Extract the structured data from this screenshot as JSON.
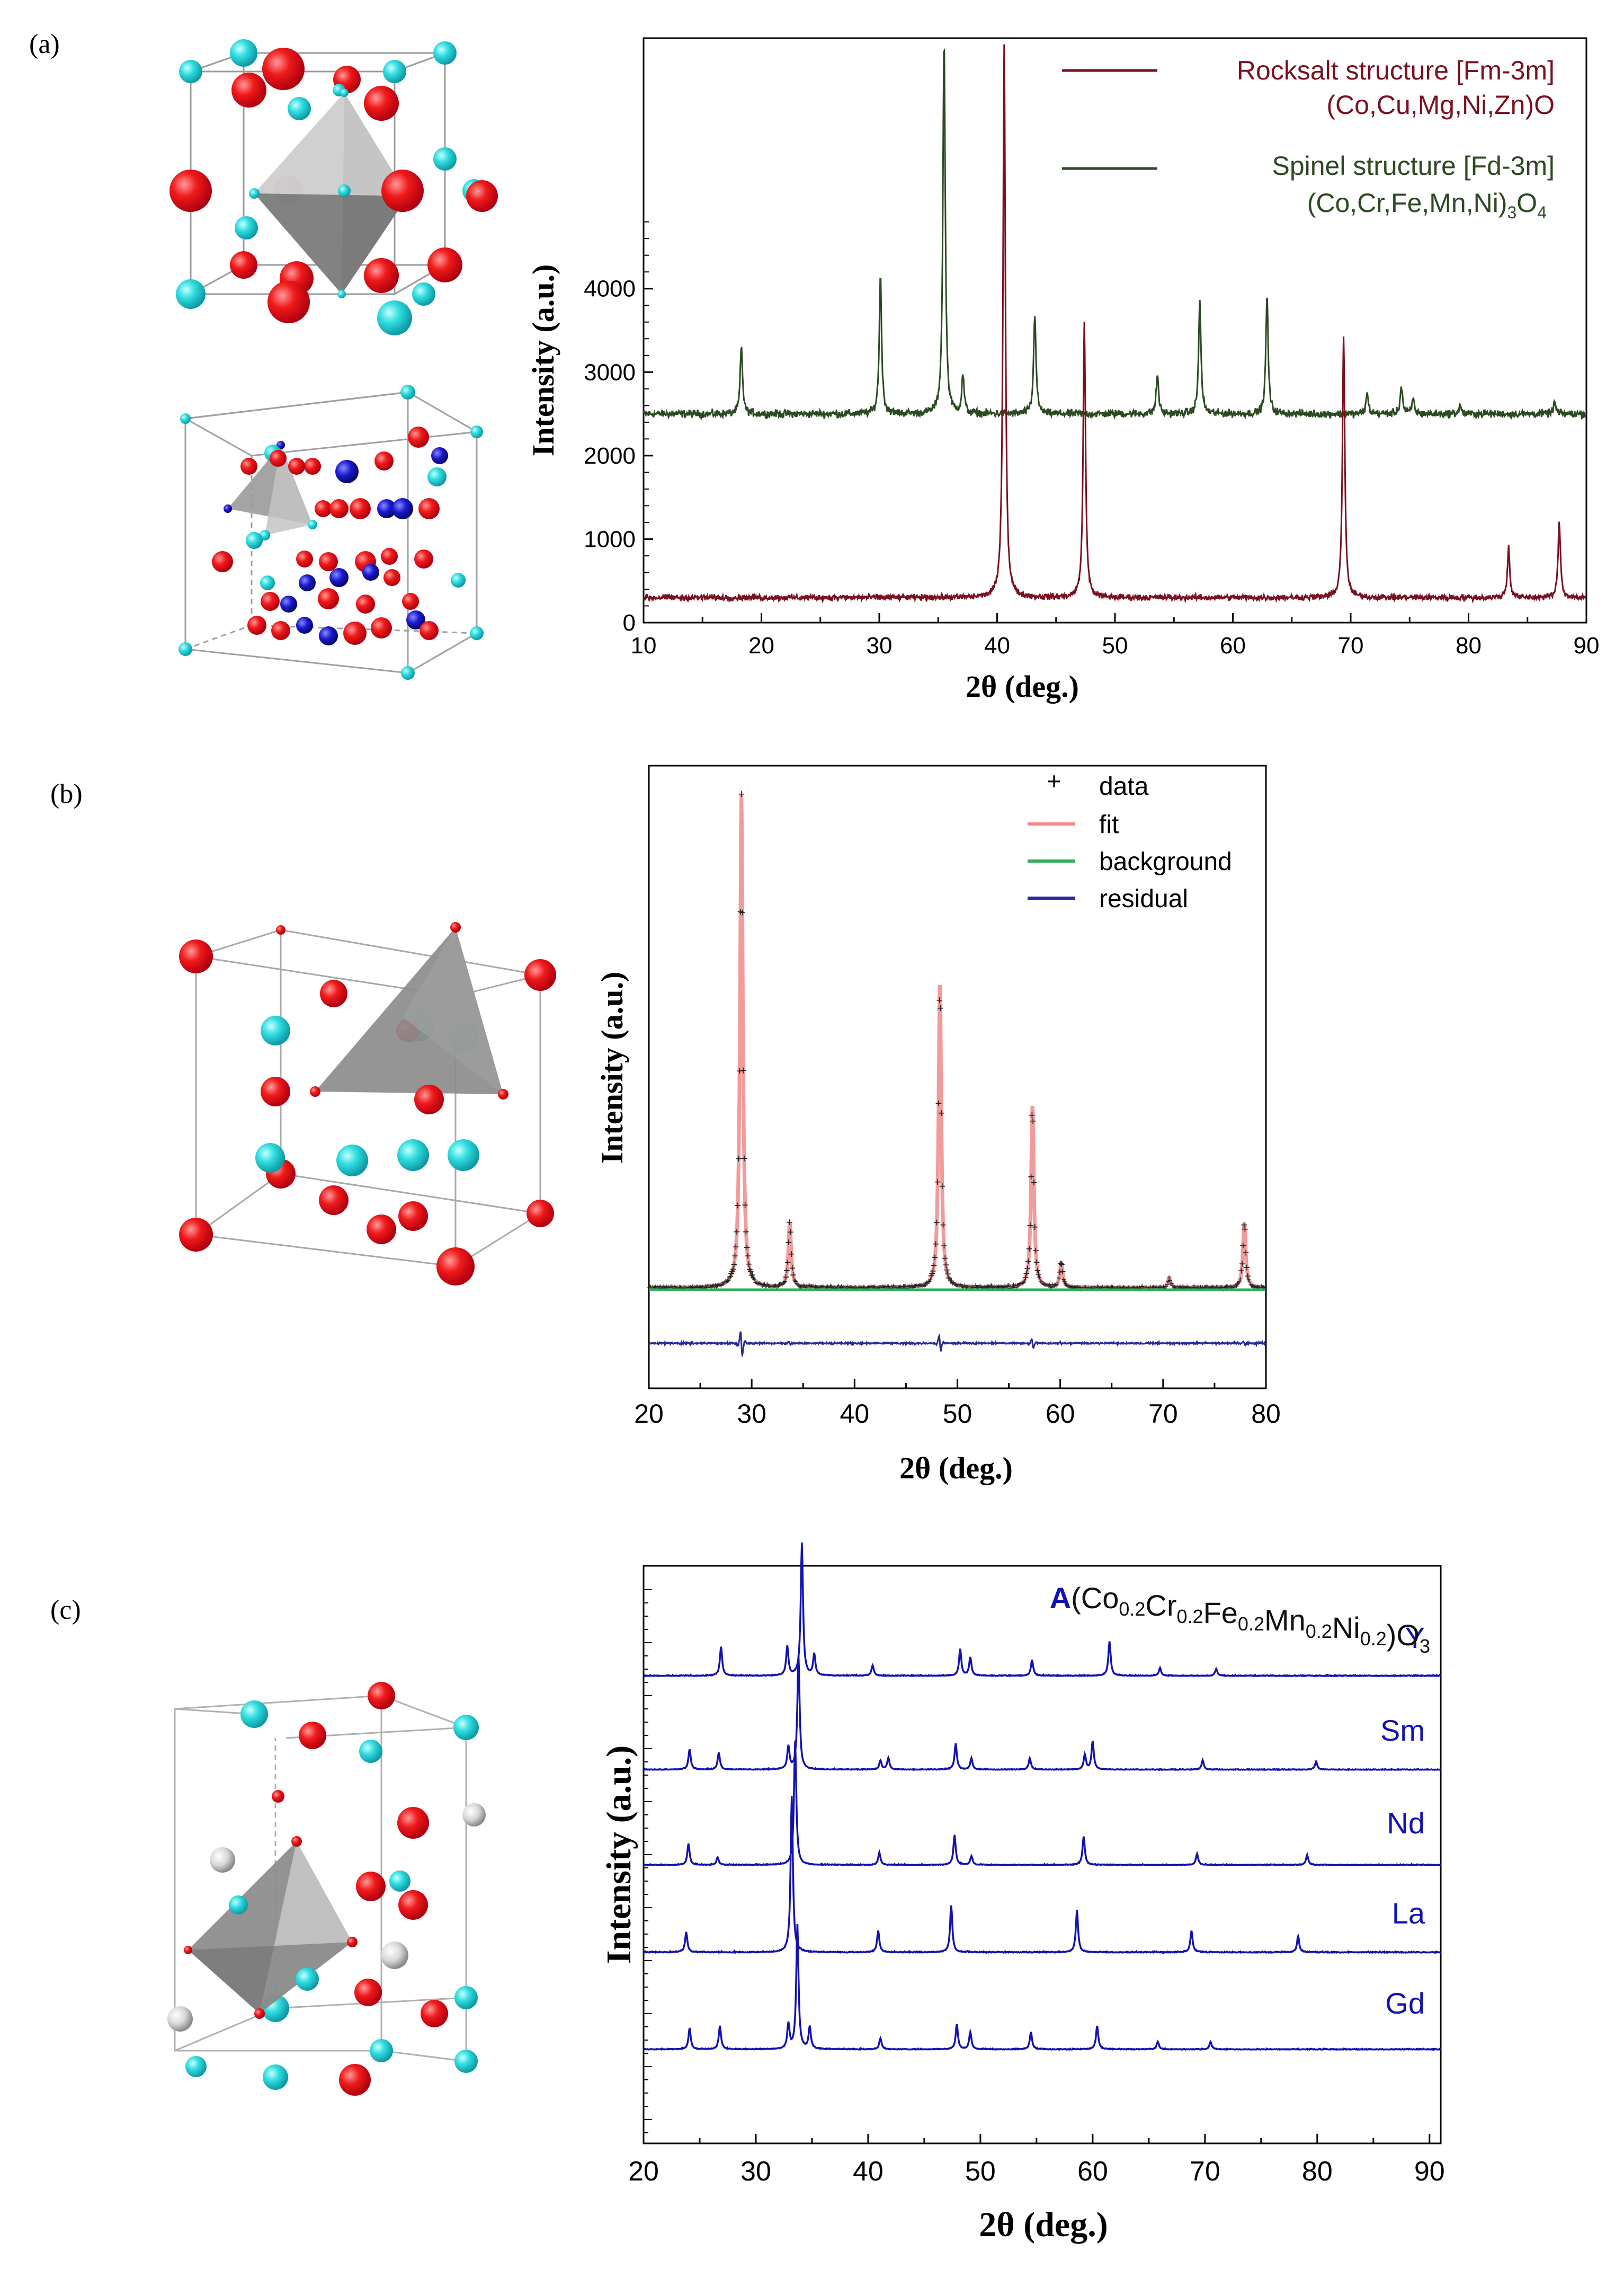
{
  "panels": [
    {
      "label": "(a)"
    },
    {
      "label": "(b)"
    },
    {
      "label": "(c)"
    }
  ],
  "colors": {
    "oxygen_atom": "#e8121a",
    "cation_atom": "#27d8dd",
    "blue_atom": "#1a1ad0",
    "grey_atom": "#d8d8d8",
    "polyhedron": "#8f8f8f",
    "rocksalt": "#7a1020",
    "spinel": "#2c4a22",
    "fit": "#f08a8a",
    "background_curve": "#2fae5a",
    "residual": "#2a2a9a",
    "perovskite": "#1212b0"
  },
  "chart_data": [
    {
      "panel": "(a)",
      "type": "line",
      "xlabel": "2θ (deg.)",
      "ylabel": "Intensity (a.u.)",
      "xlim": [
        10,
        90
      ],
      "ylim": [
        0,
        7000
      ],
      "xticks": [
        10,
        20,
        30,
        40,
        50,
        60,
        70,
        80,
        90
      ],
      "yticks": [
        0,
        1000,
        2000,
        3000,
        4000
      ],
      "legend_position": "top-right",
      "series": [
        {
          "name": "Rocksalt structure [Fm-3m]",
          "formula": "(Co,Cu,Mg,Ni,Zn)O",
          "color": "#7a1020",
          "baseline": 300,
          "peaks": [
            [
              40.6,
              6950
            ],
            [
              47.4,
              3600
            ],
            [
              69.4,
              3430
            ],
            [
              83.4,
              900
            ],
            [
              87.7,
              1210
            ]
          ]
        },
        {
          "name": "Spinel structure [Fd-3m]",
          "formula": "(Co,Cr,Fe,Mn,Ni)",
          "formula_sub": "3",
          "formula_tail": "O",
          "formula_sub2": "4",
          "color": "#2c4a22",
          "baseline": 2500,
          "peaks": [
            [
              18.3,
              3300
            ],
            [
              30.1,
              4150
            ],
            [
              35.5,
              6950
            ],
            [
              37.1,
              2950
            ],
            [
              43.2,
              3700
            ],
            [
              53.6,
              2970
            ],
            [
              57.2,
              3850
            ],
            [
              62.9,
              3900
            ],
            [
              71.4,
              2740
            ],
            [
              74.3,
              2830
            ],
            [
              75.3,
              2680
            ],
            [
              79.3,
              2600
            ],
            [
              87.3,
              2640
            ]
          ]
        }
      ]
    },
    {
      "panel": "(b)",
      "type": "line",
      "xlabel": "2θ (deg.)",
      "ylabel": "Intensity  (a.u.)",
      "xlim": [
        20,
        80
      ],
      "xticks": [
        20,
        30,
        40,
        50,
        60,
        70,
        80
      ],
      "legend": [
        "data",
        "fit",
        "background",
        "residual"
      ],
      "legend_position": "top-right",
      "peaks": [
        [
          29.0,
          1.0
        ],
        [
          33.7,
          0.13
        ],
        [
          48.3,
          0.62
        ],
        [
          57.3,
          0.37
        ],
        [
          60.1,
          0.05
        ],
        [
          70.6,
          0.02
        ],
        [
          77.9,
          0.13
        ]
      ]
    },
    {
      "panel": "(c)",
      "type": "line",
      "xlabel": "2θ (deg.)",
      "ylabel": "Intensity (a.u.)",
      "xlim": [
        20,
        91
      ],
      "xticks": [
        20,
        30,
        40,
        50,
        60,
        70,
        80,
        90
      ],
      "title_prefix": "A",
      "title_parts": [
        {
          "text": "(Co",
          "sub": "0.2"
        },
        {
          "text": "Cr",
          "sub": "0.2"
        },
        {
          "text": "Fe",
          "sub": "0.2"
        },
        {
          "text": "Mn",
          "sub": "0.2"
        },
        {
          "text": "Ni",
          "sub": "0.2"
        },
        {
          "text": ")O",
          "sub": "3"
        }
      ],
      "series": [
        {
          "name": "Y",
          "peaks": [
            [
              26.9,
              0.22
            ],
            [
              32.8,
              0.22
            ],
            [
              34.1,
              1.0
            ],
            [
              35.2,
              0.16
            ],
            [
              40.4,
              0.08
            ],
            [
              48.2,
              0.2
            ],
            [
              49.1,
              0.14
            ],
            [
              54.6,
              0.12
            ],
            [
              61.5,
              0.26
            ],
            [
              66.0,
              0.06
            ],
            [
              71.0,
              0.05
            ]
          ]
        },
        {
          "name": "Sm",
          "peaks": [
            [
              24.1,
              0.18
            ],
            [
              26.7,
              0.15
            ],
            [
              32.9,
              0.2
            ],
            [
              33.8,
              1.0
            ],
            [
              41.1,
              0.08
            ],
            [
              41.8,
              0.1
            ],
            [
              47.8,
              0.23
            ],
            [
              49.2,
              0.1
            ],
            [
              54.4,
              0.1
            ],
            [
              59.3,
              0.13
            ],
            [
              60.0,
              0.25
            ],
            [
              69.8,
              0.08
            ],
            [
              79.9,
              0.07
            ]
          ]
        },
        {
          "name": "Nd",
          "peaks": [
            [
              24.0,
              0.17
            ],
            [
              26.6,
              0.06
            ],
            [
              33.5,
              1.0
            ],
            [
              41.0,
              0.1
            ],
            [
              47.7,
              0.24
            ],
            [
              49.2,
              0.07
            ],
            [
              59.2,
              0.23
            ],
            [
              69.3,
              0.09
            ],
            [
              79.1,
              0.08
            ]
          ]
        },
        {
          "name": "La",
          "peaks": [
            [
              23.8,
              0.13
            ],
            [
              33.2,
              1.0
            ],
            [
              40.9,
              0.14
            ],
            [
              47.4,
              0.3
            ],
            [
              58.6,
              0.27
            ],
            [
              68.8,
              0.14
            ],
            [
              78.3,
              0.1
            ]
          ]
        },
        {
          "name": "Gd",
          "peaks": [
            [
              24.1,
              0.17
            ],
            [
              26.8,
              0.19
            ],
            [
              32.9,
              0.2
            ],
            [
              33.7,
              1.0
            ],
            [
              34.8,
              0.18
            ],
            [
              41.1,
              0.09
            ],
            [
              47.9,
              0.2
            ],
            [
              49.1,
              0.14
            ],
            [
              54.5,
              0.14
            ],
            [
              60.4,
              0.19
            ],
            [
              65.8,
              0.06
            ],
            [
              70.5,
              0.06
            ]
          ]
        }
      ]
    }
  ]
}
